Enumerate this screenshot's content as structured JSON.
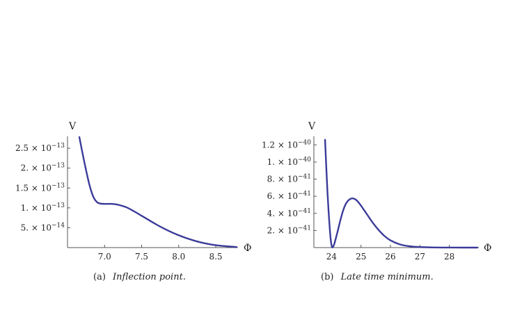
{
  "chart_data": [
    {
      "type": "line",
      "ylabel": "V",
      "xlabel": "Φ",
      "caption_prefix": "(a)",
      "caption_text": "Inflection point.",
      "xlim": [
        6.5,
        8.8
      ],
      "ylim": [
        0,
        2.8e-13
      ],
      "x_ticks": [
        7.0,
        7.5,
        8.0,
        8.5
      ],
      "x_tick_labels": [
        "7.0",
        "7.5",
        "8.0",
        "8.5"
      ],
      "y_ticks": [
        5e-14,
        1e-13,
        1.5e-13,
        2e-13,
        2.5e-13
      ],
      "y_tick_mantissa": [
        "5.",
        "1.",
        "1.5",
        "2.",
        "2.5"
      ],
      "y_tick_exponent": [
        "−14",
        "−13",
        "−13",
        "−13",
        "−13"
      ],
      "series_color": "#3b3b9a",
      "x": [
        6.66,
        6.7,
        6.75,
        6.8,
        6.85,
        6.9,
        6.95,
        7.0,
        7.05,
        7.1,
        7.15,
        7.2,
        7.3,
        7.4,
        7.5,
        7.6,
        7.7,
        7.8,
        7.9,
        8.0,
        8.1,
        8.2,
        8.3,
        8.4,
        8.5,
        8.6,
        8.7,
        8.78
      ],
      "y": [
        2.78e-13,
        2.4e-13,
        1.95e-13,
        1.55e-13,
        1.27e-13,
        1.14e-13,
        1.105e-13,
        1.1e-13,
        1.1e-13,
        1.1e-13,
        1.09e-13,
        1.07e-13,
        1.01e-13,
        9.1e-14,
        8e-14,
        6.9e-14,
        5.8e-14,
        4.8e-14,
        3.9e-14,
        3.1e-14,
        2.4e-14,
        1.8e-14,
        1.3e-14,
        9e-15,
        6e-15,
        4e-15,
        2.5e-15,
        1.5e-15
      ]
    },
    {
      "type": "line",
      "ylabel": "V",
      "xlabel": "Φ",
      "caption_prefix": "(b)",
      "caption_text": "Late time minimum.",
      "xlim": [
        23.4,
        29.0
      ],
      "ylim": [
        0,
        1.3e-40
      ],
      "x_ticks": [
        24,
        25,
        26,
        27,
        28
      ],
      "x_tick_labels": [
        "24",
        "25",
        "26",
        "27",
        "28"
      ],
      "y_ticks": [
        2e-41,
        4e-41,
        6e-41,
        8e-41,
        1e-40,
        1.2e-40
      ],
      "y_tick_mantissa": [
        "2.",
        "4.",
        "6.",
        "8.",
        "1.",
        "1.2"
      ],
      "y_tick_exponent": [
        "−41",
        "−41",
        "−41",
        "−41",
        "−40",
        "−40"
      ],
      "series_color": "#3b3b9a",
      "x": [
        23.78,
        23.82,
        23.86,
        23.9,
        23.94,
        23.98,
        24.02,
        24.06,
        24.1,
        24.2,
        24.3,
        24.4,
        24.5,
        24.6,
        24.7,
        24.8,
        24.9,
        25.0,
        25.2,
        25.4,
        25.6,
        25.8,
        26.0,
        26.3,
        26.6,
        27.0,
        27.5,
        28.0,
        28.5,
        28.95
      ],
      "y": [
        1.26e-40,
        9.5e-41,
        6.6e-41,
        4.2e-41,
        2.2e-41,
        7e-42,
        5e-43,
        1.5e-42,
        5e-42,
        1.8e-41,
        3.2e-41,
        4.4e-41,
        5.2e-41,
        5.6e-41,
        5.75e-41,
        5.65e-41,
        5.35e-41,
        4.9e-41,
        3.9e-41,
        2.9e-41,
        2.05e-41,
        1.35e-41,
        8.5e-42,
        4e-42,
        1.8e-42,
        6e-43,
        1.5e-43,
        4e-44,
        1e-44,
        0
      ]
    }
  ]
}
